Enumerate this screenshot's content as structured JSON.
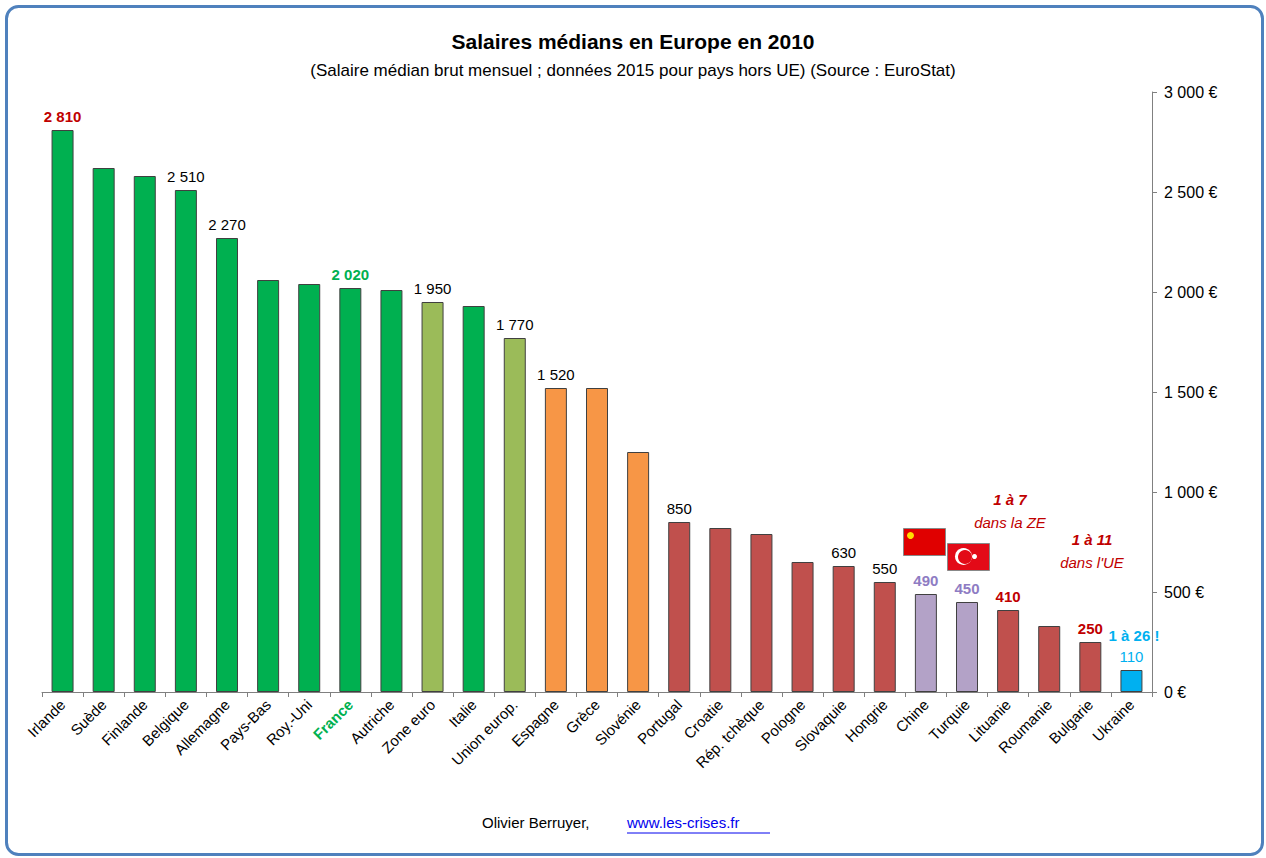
{
  "chart_data": {
    "type": "bar",
    "title": "Salaires médians en Europe en 2010",
    "subtitle": "(Salaire médian brut mensuel ; données 2015 pour pays hors UE) (Source : EuroStat)",
    "categories": [
      "Irlande",
      "Suède",
      "Finlande",
      "Belgique",
      "Allemagne",
      "Pays-Bas",
      "Roy.-Uni",
      "France",
      "Autriche",
      "Zone euro",
      "Italie",
      "Union europ.",
      "Espagne",
      "Grèce",
      "Slovénie",
      "Portugal",
      "Croatie",
      "Rép. tchèque",
      "Pologne",
      "Slovaquie",
      "Hongrie",
      "Chine",
      "Turquie",
      "Lituanie",
      "Roumanie",
      "Bulgarie",
      "Ukraine"
    ],
    "values": [
      2810,
      2620,
      2580,
      2510,
      2270,
      2060,
      2040,
      2020,
      2010,
      1950,
      1930,
      1770,
      1520,
      1520,
      1200,
      850,
      820,
      790,
      650,
      630,
      550,
      490,
      450,
      410,
      330,
      250,
      110
    ],
    "value_labels": [
      "2 810",
      null,
      null,
      "2 510",
      "2 270",
      null,
      null,
      "2 020",
      null,
      "1 950",
      null,
      "1 770",
      "1 520",
      null,
      null,
      "850",
      null,
      null,
      null,
      "630",
      "550",
      "490",
      "450",
      "410",
      null,
      "250",
      "110"
    ],
    "colors": [
      "#00b050",
      "#00b050",
      "#00b050",
      "#00b050",
      "#00b050",
      "#00b050",
      "#00b050",
      "#00b050",
      "#00b050",
      "#9bbb59",
      "#00b050",
      "#9bbb59",
      "#f79646",
      "#f79646",
      "#f79646",
      "#c0504d",
      "#c0504d",
      "#c0504d",
      "#c0504d",
      "#c0504d",
      "#c0504d",
      "#b3a2c7",
      "#b3a2c7",
      "#c0504d",
      "#c0504d",
      "#c0504d",
      "#00b0f0"
    ],
    "ylim": [
      0,
      3000
    ],
    "yticks": [
      {
        "value": 0,
        "label": "0 €"
      },
      {
        "value": 500,
        "label": "500 €"
      },
      {
        "value": 1000,
        "label": "1 000 €"
      },
      {
        "value": 1500,
        "label": "1 500 €"
      },
      {
        "value": 2000,
        "label": "2 000 €"
      },
      {
        "value": 2500,
        "label": "2 500 €"
      },
      {
        "value": 3000,
        "label": "3 000 €"
      }
    ],
    "grid": false,
    "data_labels": true,
    "annotations": [
      "1 à 7",
      "dans la ZE",
      "1 à 11",
      "dans l'UE",
      "1 à 26 !"
    ],
    "author": "Olivier Berruyer,",
    "url": "www.les-crises.fr"
  }
}
